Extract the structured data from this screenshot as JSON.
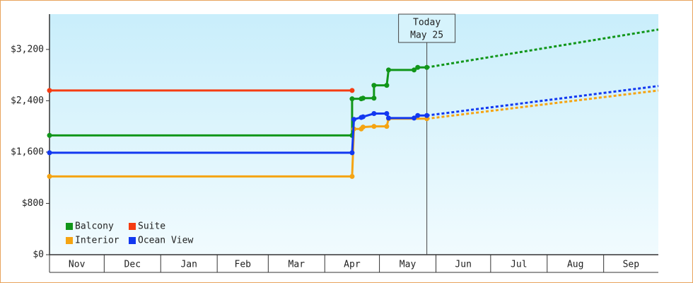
{
  "chart_data": {
    "type": "line",
    "xlim": [
      0,
      334
    ],
    "xticks": [
      {
        "value": 0,
        "label": "Nov"
      },
      {
        "value": 30,
        "label": "Dec"
      },
      {
        "value": 61,
        "label": "Jan"
      },
      {
        "value": 92,
        "label": "Feb"
      },
      {
        "value": 120,
        "label": "Mar"
      },
      {
        "value": 151,
        "label": "Apr"
      },
      {
        "value": 181,
        "label": "May"
      },
      {
        "value": 212,
        "label": "Jun"
      },
      {
        "value": 242,
        "label": "Jul"
      },
      {
        "value": 273,
        "label": "Aug"
      },
      {
        "value": 304,
        "label": "Sep"
      }
    ],
    "ylim": [
      0,
      3750
    ],
    "yticks": [
      {
        "value": 0,
        "label": "$0"
      },
      {
        "value": 800,
        "label": "$800"
      },
      {
        "value": 1600,
        "label": "$1,600"
      },
      {
        "value": 2400,
        "label": "$2,400"
      },
      {
        "value": 3200,
        "label": "$3,200"
      }
    ],
    "legend": "bottom-left",
    "today": {
      "x": 207,
      "lines": [
        "Today",
        "May 25"
      ]
    },
    "series": [
      {
        "name": "Balcony",
        "color": "#11961a",
        "x": [
          0,
          166,
          166,
          171,
          172,
          178,
          178,
          185,
          186,
          200,
          202,
          207
        ],
        "values": [
          1860,
          1860,
          2430,
          2430,
          2440,
          2440,
          2640,
          2640,
          2880,
          2880,
          2920,
          2920
        ],
        "forecast_x": [
          207,
          334
        ],
        "forecast_values": [
          2920,
          3510
        ]
      },
      {
        "name": "Suite",
        "color": "#f53c12",
        "x": [
          0,
          166
        ],
        "values": [
          2560,
          2560
        ]
      },
      {
        "name": "Interior",
        "color": "#f5a412",
        "x": [
          0,
          166,
          167,
          171,
          172,
          178,
          185,
          186,
          207
        ],
        "values": [
          1220,
          1220,
          1960,
          1960,
          1990,
          2000,
          2000,
          2120,
          2120
        ],
        "forecast_x": [
          207,
          334
        ],
        "forecast_values": [
          2120,
          2560
        ]
      },
      {
        "name": "Ocean View",
        "color": "#1238f0",
        "x": [
          0,
          166,
          167,
          171,
          172,
          178,
          185,
          186,
          200,
          202,
          207
        ],
        "values": [
          1590,
          1590,
          2110,
          2140,
          2150,
          2200,
          2200,
          2130,
          2130,
          2170,
          2170
        ],
        "forecast_x": [
          207,
          334
        ],
        "forecast_values": [
          2170,
          2630
        ]
      }
    ]
  }
}
